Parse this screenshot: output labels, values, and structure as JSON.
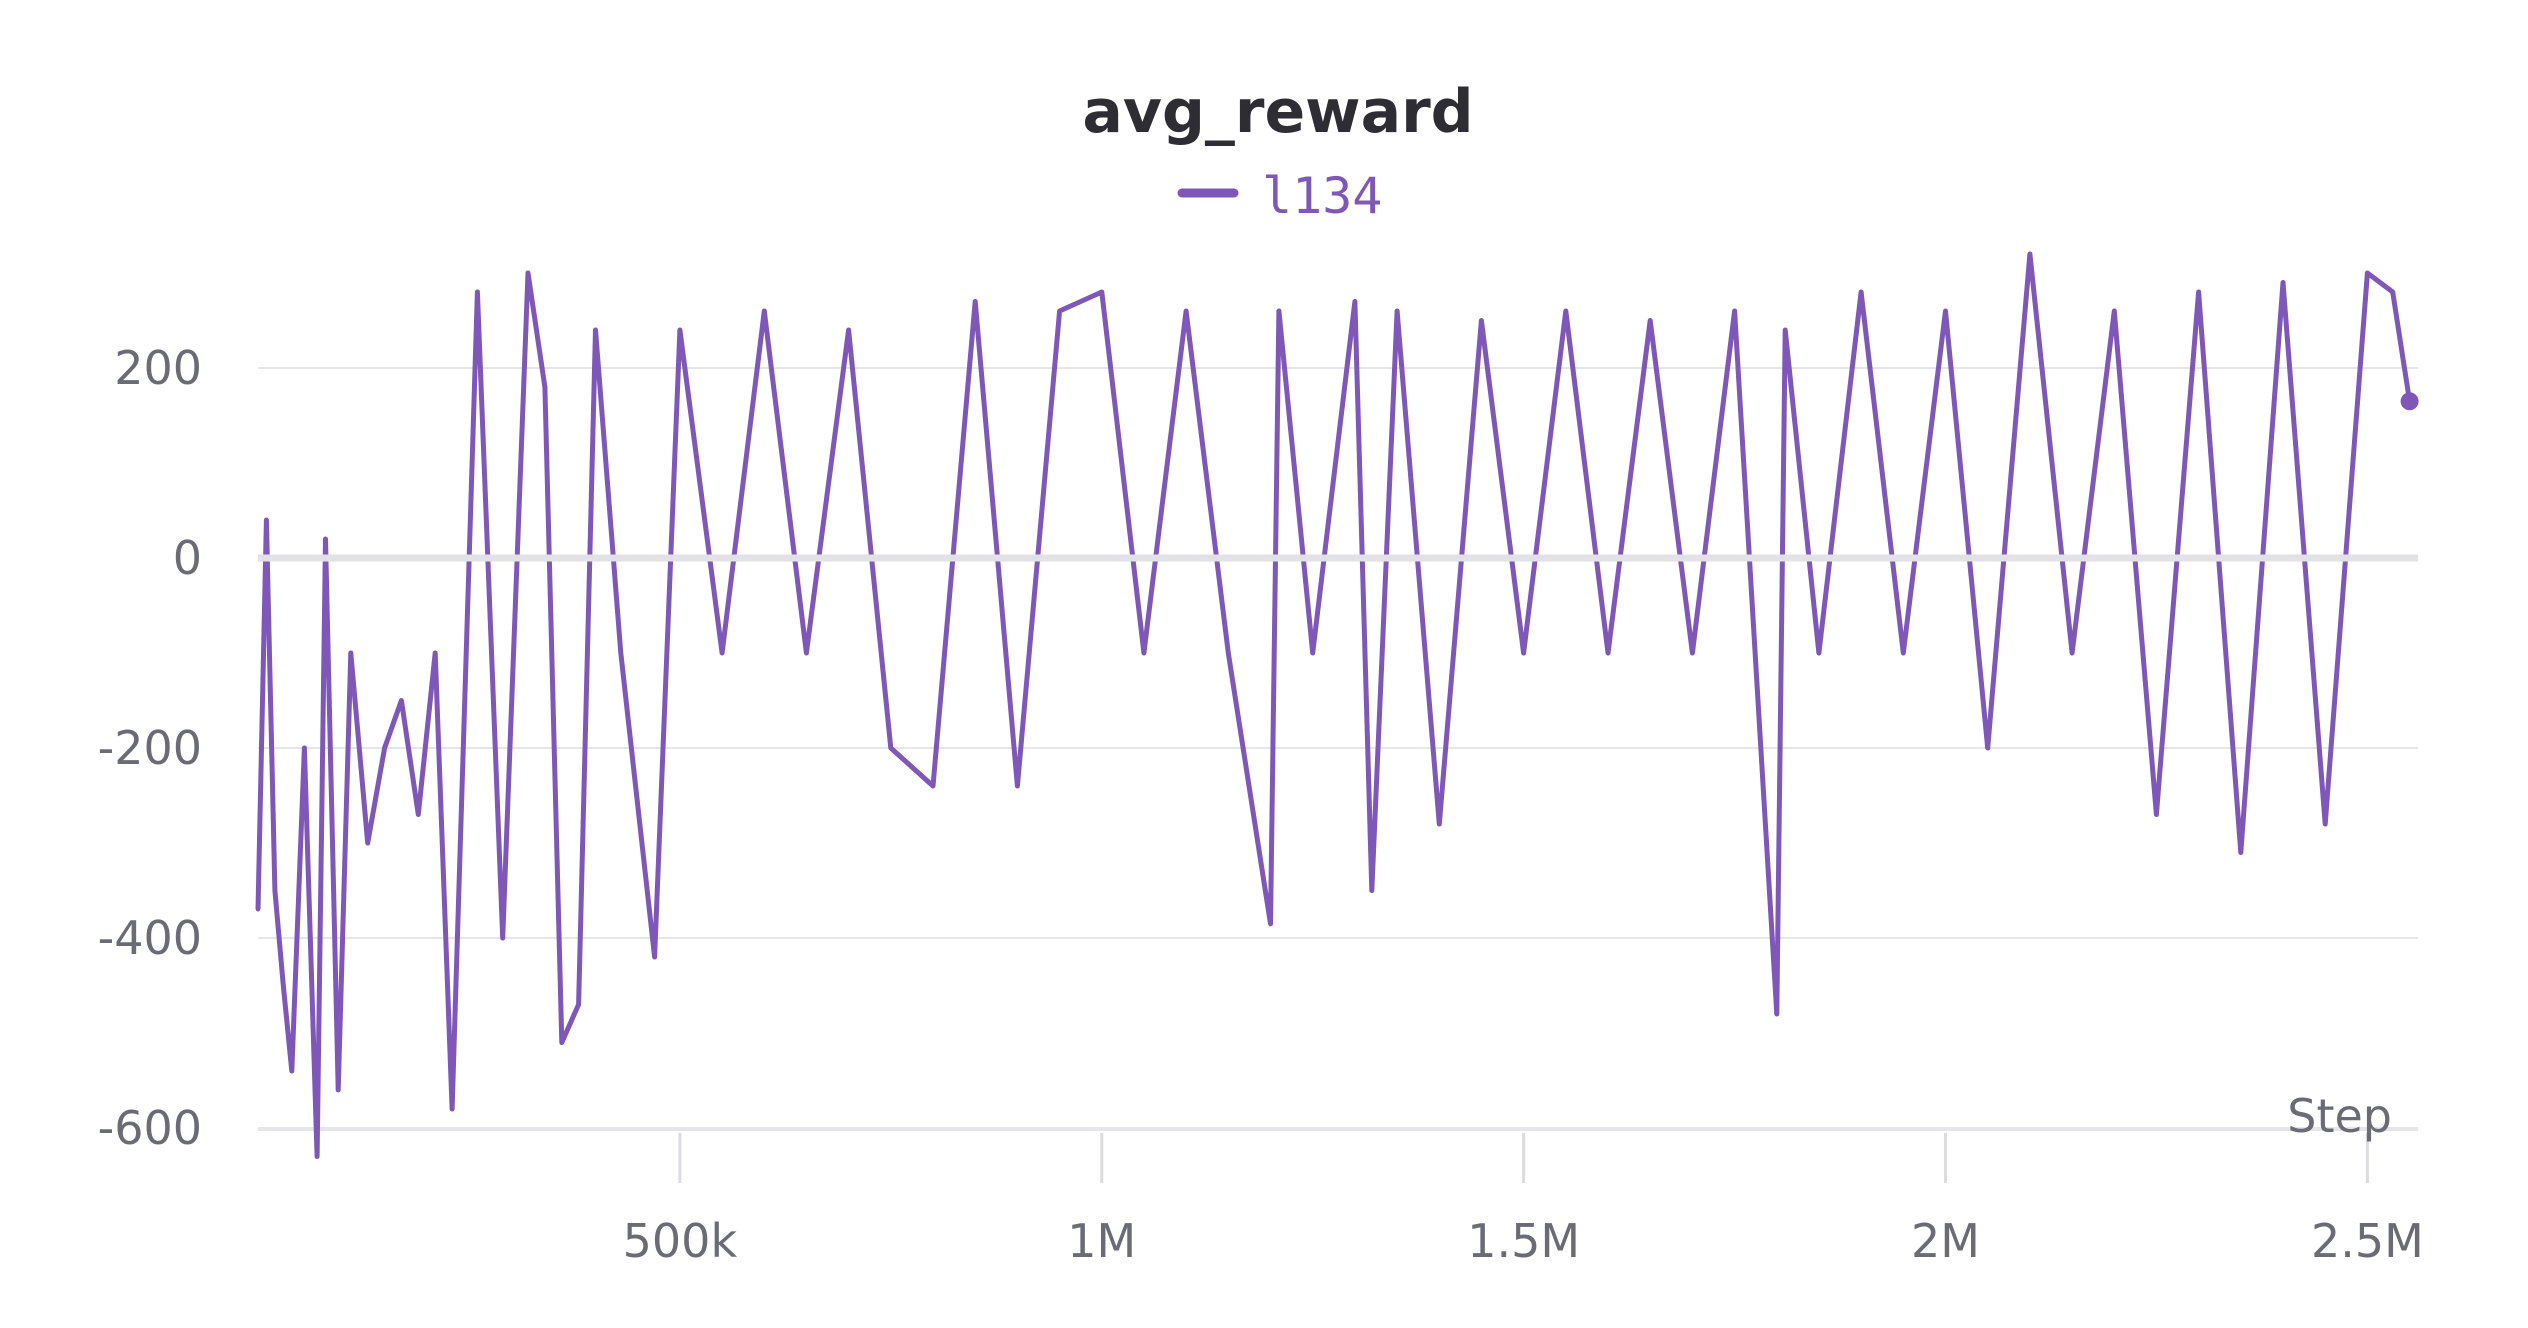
{
  "chart_data": {
    "type": "line",
    "title": "avg_reward",
    "xlabel": "Step",
    "ylabel": "",
    "xlim": [
      0,
      2560000
    ],
    "ylim": [
      -640,
      330
    ],
    "y_ticks": [
      200,
      0,
      -200,
      -400,
      -600
    ],
    "y_tick_labels": [
      "200",
      "0",
      "-200",
      "-400",
      "-600"
    ],
    "x_ticks": [
      500000,
      1000000,
      1500000,
      2000000,
      2500000
    ],
    "x_tick_labels": [
      "500k",
      "1M",
      "1.5M",
      "2M",
      "2.5M"
    ],
    "grid": true,
    "legend_position": "top-center",
    "series": [
      {
        "name": "l134",
        "color": "#7e57b8",
        "x": [
          0,
          10000,
          20000,
          30000,
          40000,
          55000,
          70000,
          80000,
          95000,
          110000,
          130000,
          150000,
          170000,
          190000,
          210000,
          230000,
          260000,
          290000,
          320000,
          340000,
          360000,
          380000,
          400000,
          430000,
          470000,
          500000,
          550000,
          600000,
          650000,
          700000,
          750000,
          800000,
          850000,
          900000,
          950000,
          1000000,
          1050000,
          1100000,
          1150000,
          1200000,
          1210000,
          1250000,
          1300000,
          1320000,
          1350000,
          1400000,
          1450000,
          1500000,
          1550000,
          1600000,
          1650000,
          1700000,
          1750000,
          1800000,
          1810000,
          1850000,
          1900000,
          1950000,
          2000000,
          2050000,
          2100000,
          2150000,
          2200000,
          2250000,
          2300000,
          2350000,
          2400000,
          2450000,
          2500000,
          2530000,
          2550000
        ],
        "values": [
          -370,
          40,
          -350,
          -450,
          -540,
          -200,
          -630,
          20,
          -560,
          -100,
          -300,
          -200,
          -150,
          -270,
          -100,
          -580,
          280,
          -400,
          300,
          180,
          -510,
          -470,
          240,
          -100,
          -420,
          240,
          -100,
          260,
          -100,
          240,
          -200,
          -240,
          270,
          -240,
          260,
          280,
          -100,
          260,
          -100,
          -385,
          260,
          -100,
          270,
          -350,
          260,
          -280,
          250,
          -100,
          260,
          -100,
          250,
          -100,
          260,
          -480,
          240,
          -100,
          280,
          -100,
          260,
          -200,
          320,
          -100,
          260,
          -270,
          280,
          -310,
          290,
          -280,
          300,
          280,
          165
        ]
      }
    ]
  }
}
